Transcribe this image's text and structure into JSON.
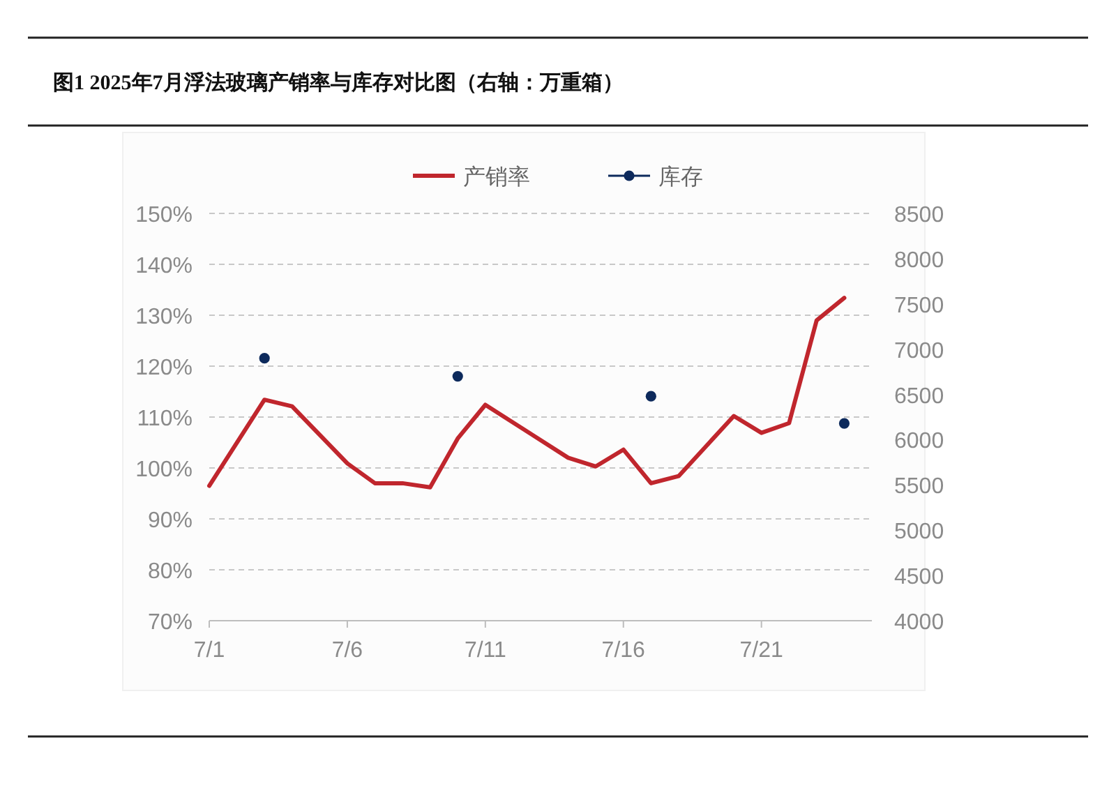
{
  "chart_data": {
    "type": "line",
    "title": "图1 2025年7月浮法玻璃产销率与库存对比图（右轴：万重箱）",
    "legend": "top",
    "grid": "y",
    "xlim": [
      "--07-01",
      "--07-25"
    ],
    "xticks": [
      {
        "value": "--07-01",
        "label": "7/1"
      },
      {
        "value": "--07-06",
        "label": "7/6"
      },
      {
        "value": "--07-11",
        "label": "7/11"
      },
      {
        "value": "--07-16",
        "label": "7/16"
      },
      {
        "value": "--07-21",
        "label": "7/21"
      }
    ],
    "ylim": [
      70,
      150
    ],
    "yticks": [
      {
        "value": 70,
        "label": "70%"
      },
      {
        "value": 80,
        "label": "80%"
      },
      {
        "value": 90,
        "label": "90%"
      },
      {
        "value": 100,
        "label": "100%"
      },
      {
        "value": 110,
        "label": "110%"
      },
      {
        "value": 120,
        "label": "120%"
      },
      {
        "value": 130,
        "label": "130%"
      },
      {
        "value": 140,
        "label": "140%"
      },
      {
        "value": 150,
        "label": "150%"
      }
    ],
    "y2lim": [
      4000,
      8500
    ],
    "y2ticks": [
      4000,
      4500,
      5000,
      5500,
      6000,
      6500,
      7000,
      7500,
      8000,
      8500
    ],
    "series": [
      {
        "name": "产销率",
        "type": "line",
        "color": "#c0262d",
        "marker": "none",
        "line_style": "solid",
        "x": [
          "--07-01",
          "--07-03",
          "--07-04",
          "--07-06",
          "--07-07",
          "--07-08",
          "--07-09",
          "--07-10",
          "--07-11",
          "--07-14",
          "--07-15",
          "--07-16",
          "--07-17",
          "--07-18",
          "--07-20",
          "--07-21",
          "--07-22",
          "--07-23",
          "--07-24"
        ],
        "values": [
          96.5,
          113.4,
          112.1,
          100.9,
          97,
          97,
          96.2,
          105.8,
          112.4,
          102,
          100.3,
          103.6,
          97,
          98.4,
          110.2,
          106.9,
          108.8,
          129,
          133.4
        ]
      },
      {
        "name": "库存",
        "type": "scatter",
        "axis": "y2",
        "color": "#0d2a5c",
        "marker": "circle",
        "x": [
          "--07-03",
          "--07-10",
          "--07-17",
          "--07-24"
        ],
        "values": [
          6900,
          6700,
          6480,
          6180
        ]
      }
    ]
  }
}
